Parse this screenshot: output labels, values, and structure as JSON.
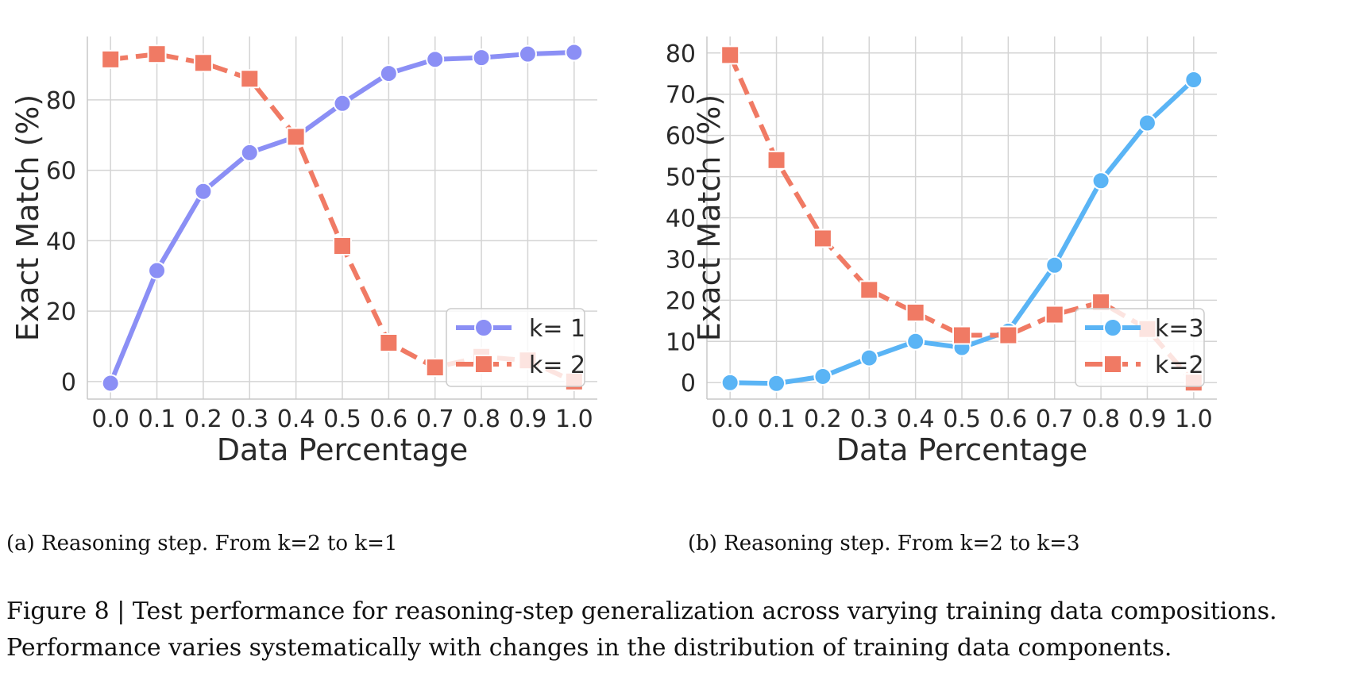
{
  "chart_data": [
    {
      "type": "line",
      "x": [
        0.0,
        0.1,
        0.2,
        0.3,
        0.4,
        0.5,
        0.6,
        0.7,
        0.8,
        0.9,
        1.0
      ],
      "x_ticks": [
        "0.0",
        "0.1",
        "0.2",
        "0.3",
        "0.4",
        "0.5",
        "0.6",
        "0.7",
        "0.8",
        "0.9",
        "1.0"
      ],
      "y_ticks": [
        "0",
        "20",
        "40",
        "60",
        "80"
      ],
      "ylim": [
        -5,
        98
      ],
      "xlabel": "Data Percentage",
      "ylabel": "Exact Match (%)",
      "grid": true,
      "legend_position": "lower-right",
      "series": [
        {
          "name": "k= 1",
          "color": "#8b8ff5",
          "marker": "circle",
          "dash": "solid",
          "values": [
            -0.5,
            31.5,
            54,
            65,
            69.5,
            79,
            87.5,
            91.5,
            92,
            93,
            93.5
          ]
        },
        {
          "name": "k= 2",
          "color": "#f07a64",
          "marker": "square",
          "dash": "dashed",
          "values": [
            91.5,
            93,
            90.5,
            86,
            69.5,
            38.5,
            11,
            4,
            7,
            6,
            0
          ]
        }
      ]
    },
    {
      "type": "line",
      "x": [
        0.0,
        0.1,
        0.2,
        0.3,
        0.4,
        0.5,
        0.6,
        0.7,
        0.8,
        0.9,
        1.0
      ],
      "x_ticks": [
        "0.0",
        "0.1",
        "0.2",
        "0.3",
        "0.4",
        "0.5",
        "0.6",
        "0.7",
        "0.8",
        "0.9",
        "1.0"
      ],
      "y_ticks": [
        "0",
        "10",
        "20",
        "30",
        "40",
        "50",
        "60",
        "70",
        "80"
      ],
      "ylim": [
        -4,
        84
      ],
      "xlabel": "Data Percentage",
      "ylabel": "Exact Match (%)",
      "grid": true,
      "legend_position": "right",
      "series": [
        {
          "name": "k=3",
          "color": "#5ab4f5",
          "marker": "circle",
          "dash": "solid",
          "values": [
            0,
            -0.2,
            1.5,
            6,
            10,
            8.5,
            12.5,
            28.5,
            49,
            63,
            73.5
          ]
        },
        {
          "name": "k=2",
          "color": "#f07a64",
          "marker": "square",
          "dash": "dashed",
          "values": [
            79.5,
            54,
            35,
            22.5,
            17,
            11.5,
            11.5,
            16.5,
            19.5,
            13,
            0
          ]
        }
      ]
    }
  ],
  "captions": {
    "a": "(a) Reasoning step. From k=2 to k=1",
    "b": "(b) Reasoning step. From k=2 to k=3",
    "figure": "Figure 8 | Test performance for reasoning-step generalization across varying training data compositions. Performance varies systematically with changes in the distribution of training data components."
  }
}
